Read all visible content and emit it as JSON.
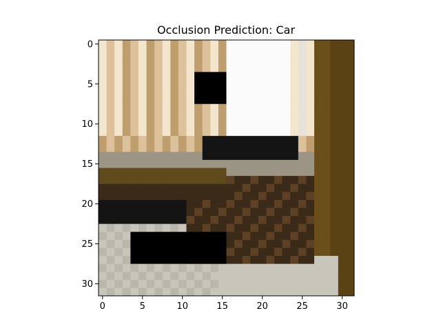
{
  "chart_data": {
    "type": "heatmap",
    "title": "Occlusion Prediction: Car",
    "xlabel": "",
    "ylabel": "",
    "image_size": [
      32,
      32
    ],
    "xlim": [
      -0.5,
      31.5
    ],
    "ylim": [
      31.5,
      -0.5
    ],
    "x_ticks": [
      0,
      5,
      10,
      15,
      20,
      25,
      30
    ],
    "y_ticks": [
      0,
      5,
      10,
      15,
      20,
      25,
      30
    ],
    "grid": false,
    "occlusion_patches": [
      {
        "col_start": 12,
        "col_end": 15,
        "row_start": 4,
        "row_end": 7,
        "color": "#000000"
      },
      {
        "col_start": 4,
        "col_end": 15,
        "row_start": 24,
        "row_end": 27,
        "color": "#000000"
      }
    ],
    "palette": {
      "cream": "#f3e6cc",
      "tan": "#dcc19a",
      "dark_tan": "#bf9e6e",
      "white": "#fbfbfb",
      "light_gray": "#e6e2da",
      "wall_olive": "#6b4f1a",
      "dark_olive": "#5a4215",
      "sill_gray": "#9c9585",
      "olive_stripe": "#5f4a1c",
      "black": "#141414",
      "dark_brown": "#3b2a18",
      "brown": "#5c4124",
      "floor_gray": "#b9b7ab",
      "floor_light": "#c8c6ba"
    }
  }
}
